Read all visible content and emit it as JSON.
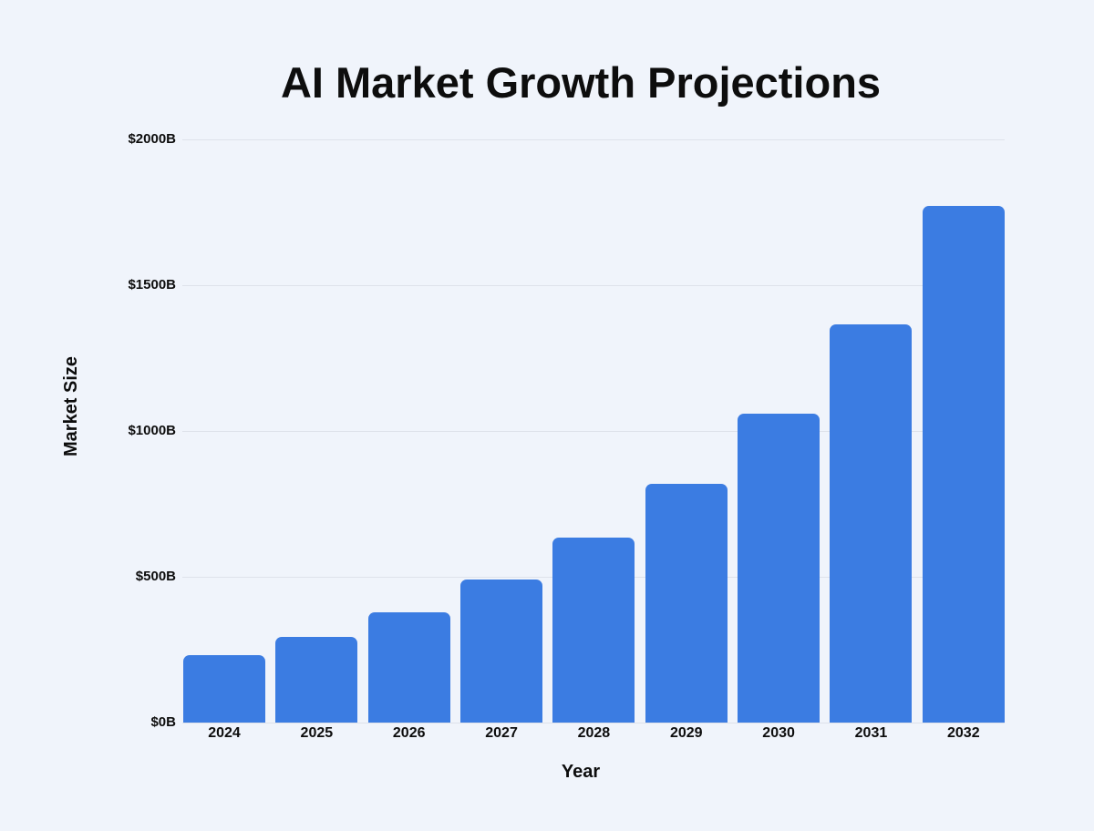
{
  "title": "AI Market Growth Projections",
  "chart_data": {
    "type": "bar",
    "title": "AI Market Growth Projections",
    "xlabel": "Year",
    "ylabel": "Market Size",
    "categories": [
      "2024",
      "2025",
      "2026",
      "2027",
      "2028",
      "2029",
      "2030",
      "2031",
      "2032"
    ],
    "values": [
      233,
      294,
      380,
      491,
      634,
      820,
      1059,
      1368,
      1772
    ],
    "y_ticks": [
      {
        "label": "$0B",
        "value": 0
      },
      {
        "label": "$500B",
        "value": 500
      },
      {
        "label": "$1000B",
        "value": 1000
      },
      {
        "label": "$1500B",
        "value": 1500
      },
      {
        "label": "$2000B",
        "value": 2000
      }
    ],
    "ylim": [
      0,
      2000
    ],
    "grid": "horizontal",
    "legend": "none",
    "bar_color": "#3B7CE2",
    "background_color": "#F0F4FB",
    "grid_color": "#DEE2EA",
    "text_color": "#0D0D0D"
  }
}
